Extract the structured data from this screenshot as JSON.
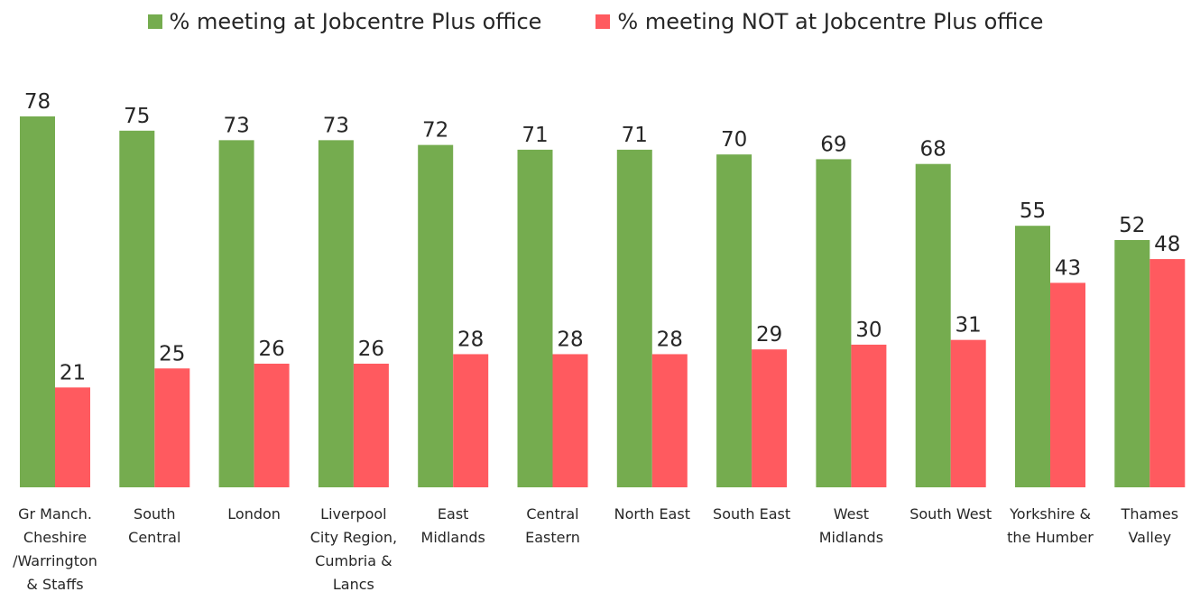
{
  "chart_data": {
    "type": "bar",
    "categories": [
      "Gr Manch. Cheshire /Warrington & Staffs",
      "South Central",
      "London",
      "Liverpool City Region, Cumbria & Lancs",
      "East Midlands",
      "Central Eastern",
      "North East",
      "South East",
      "West Midlands",
      "South West",
      "Yorkshire & the Humber",
      "Thames Valley"
    ],
    "category_lines": [
      [
        "Gr Manch.",
        "Cheshire",
        "/Warrington",
        "& Staffs"
      ],
      [
        "South",
        "Central"
      ],
      [
        "London"
      ],
      [
        "Liverpool",
        "City Region,",
        "Cumbria &",
        "Lancs"
      ],
      [
        "East",
        "Midlands"
      ],
      [
        "Central",
        "Eastern"
      ],
      [
        "North East"
      ],
      [
        "South East"
      ],
      [
        "West",
        "Midlands"
      ],
      [
        "South West"
      ],
      [
        "Yorkshire &",
        "the Humber"
      ],
      [
        "Thames",
        "Valley"
      ]
    ],
    "series": [
      {
        "name": "% meeting at Jobcentre Plus office",
        "color": "#75ac4f",
        "values": [
          78,
          75,
          73,
          73,
          72,
          71,
          71,
          70,
          69,
          68,
          55,
          52
        ]
      },
      {
        "name": "% meeting NOT at Jobcentre Plus office",
        "color": "#ff5a5f",
        "values": [
          21,
          25,
          26,
          26,
          28,
          28,
          28,
          29,
          30,
          31,
          43,
          48
        ]
      }
    ],
    "ylim": [
      0,
      78
    ],
    "grid": false,
    "legend_position": "top",
    "data_labels": true
  }
}
